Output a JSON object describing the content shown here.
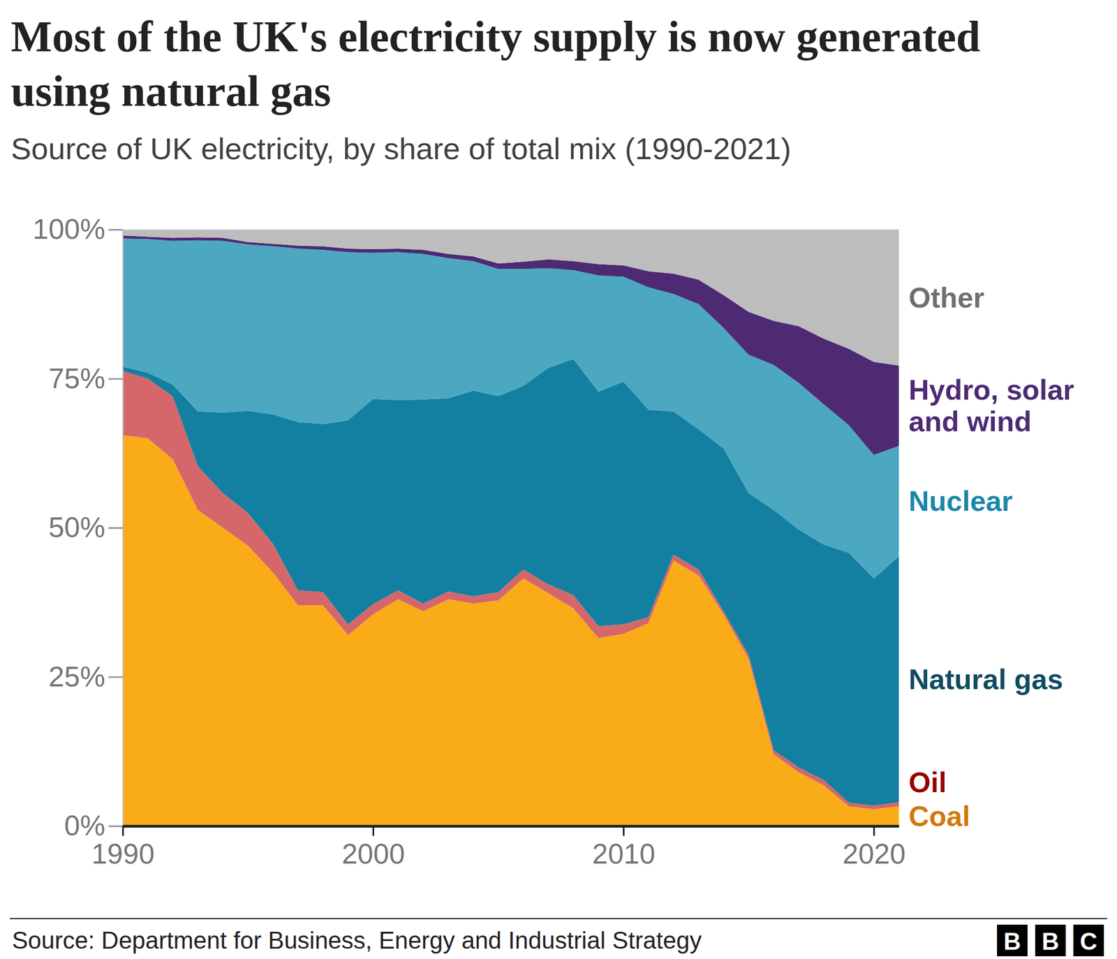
{
  "chart_data": {
    "type": "area",
    "stacked": true,
    "grid": false,
    "title": "Most of the UK's electricity supply is now generated using natural gas",
    "subtitle": "Source of UK electricity, by share of total mix (1990-2021)",
    "source": "Source: Department for Business, Energy and Industrial Strategy",
    "logo": "BBC",
    "x": [
      1990,
      1991,
      1992,
      1993,
      1994,
      1995,
      1996,
      1997,
      1998,
      1999,
      2000,
      2001,
      2002,
      2003,
      2004,
      2005,
      2006,
      2007,
      2008,
      2009,
      2010,
      2011,
      2012,
      2013,
      2014,
      2015,
      2016,
      2017,
      2018,
      2019,
      2020,
      2021
    ],
    "xlim": [
      1990,
      2021
    ],
    "xticks": [
      1990,
      2000,
      2010,
      2020
    ],
    "ylim": [
      0,
      100
    ],
    "yticks": [
      {
        "value": 0,
        "label": "0%"
      },
      {
        "value": 25,
        "label": "25%"
      },
      {
        "value": 50,
        "label": "50%"
      },
      {
        "value": 75,
        "label": "75%"
      },
      {
        "value": 100,
        "label": "100%"
      }
    ],
    "series": [
      {
        "name": "Coal",
        "color": "#faab18",
        "values": [
          65.5,
          65,
          61.5,
          53,
          50,
          47,
          42.5,
          37,
          37,
          32,
          35.5,
          38,
          36,
          38,
          37.3,
          37.8,
          41.5,
          39,
          36.5,
          31.5,
          32.2,
          34,
          44.5,
          42,
          35.5,
          28,
          12,
          9,
          6.8,
          3.3,
          2.8,
          3.3
        ]
      },
      {
        "name": "Oil",
        "color": "#d5676a",
        "values": [
          10.8,
          10,
          10.5,
          7.3,
          5.8,
          5.5,
          4.8,
          2.5,
          2.2,
          1.8,
          1.7,
          1.5,
          1.3,
          1.3,
          1.2,
          1.4,
          1.5,
          1.5,
          2.2,
          2,
          1.6,
          1,
          1,
          1,
          0.5,
          0.7,
          0.7,
          0.8,
          0.9,
          0.6,
          0.6,
          0.7
        ]
      },
      {
        "name": "Natural gas",
        "color": "#1380a1",
        "values": [
          0.7,
          1,
          2,
          9.2,
          13.5,
          17.1,
          21.7,
          28.2,
          28.2,
          34.2,
          34.4,
          31.9,
          34.2,
          32.4,
          34.5,
          32.9,
          30.8,
          36.3,
          39.6,
          39.3,
          40.7,
          34.8,
          24,
          23.5,
          27.3,
          27.1,
          40.3,
          39.9,
          39.5,
          41.9,
          38.1,
          41.2
        ]
      },
      {
        "name": "Nuclear",
        "color": "#4ba8c0",
        "values": [
          21.5,
          22.4,
          24.1,
          28.7,
          28.8,
          27.9,
          28.2,
          29.1,
          29.2,
          28.2,
          24.5,
          24.8,
          24.4,
          23.5,
          21.7,
          21.3,
          19.6,
          16.7,
          14.9,
          19.5,
          17.6,
          20.5,
          19.7,
          21,
          20.2,
          23.2,
          24.3,
          24.6,
          23.5,
          21.4,
          20.7,
          18.5
        ]
      },
      {
        "name": "Hydro, solar and wind",
        "color": "#4e2a74",
        "values": [
          0.5,
          0.4,
          0.5,
          0.5,
          0.5,
          0.4,
          0.4,
          0.5,
          0.6,
          0.6,
          0.6,
          0.6,
          0.7,
          0.7,
          0.8,
          0.9,
          1.2,
          1.5,
          1.5,
          1.9,
          1.9,
          2.7,
          3.4,
          4.1,
          5.5,
          7.2,
          7.4,
          9.5,
          11,
          12.8,
          15.6,
          13.5
        ]
      },
      {
        "name": "Other",
        "color": "#bdbdbd",
        "values": [
          1,
          1.2,
          1.4,
          1.3,
          1.4,
          2.1,
          2.4,
          2.7,
          2.8,
          3.2,
          3.3,
          3.2,
          3.4,
          4.1,
          4.5,
          5.7,
          5.4,
          5,
          5.3,
          5.8,
          6,
          7,
          7.4,
          8.4,
          11,
          13.8,
          15.3,
          16.2,
          18.3,
          20,
          22.2,
          22.8
        ]
      }
    ]
  }
}
